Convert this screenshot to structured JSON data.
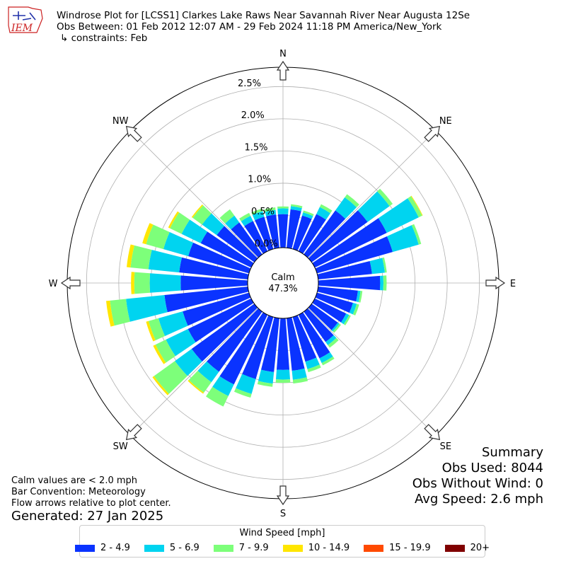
{
  "header": {
    "title": "Windrose Plot for [LCSS1] Clarkes Lake Raws Near Savannah River Near Augusta 12Se",
    "period": "Obs Between: 01 Feb 2012 12:07 AM - 29 Feb 2024 11:18 PM America/New_York",
    "constraints": "↳ constraints: Feb",
    "logo_text": "IEM"
  },
  "summary": {
    "title": "Summary",
    "obs_used": "Obs Used: 8044",
    "obs_without_wind": "Obs Without Wind: 0",
    "avg_speed": "Avg Speed: 2.6 mph"
  },
  "notes": {
    "calm_def": "Calm values are < 2.0 mph",
    "convention": "Bar Convention: Meteorology",
    "arrows": "Flow arrows relative to plot center.",
    "generated": "Generated: 27 Jan 2025"
  },
  "chart_data": {
    "type": "windrose",
    "calm_label": "Calm",
    "calm_value": "47.3%",
    "r_ticks": [
      "0.0%",
      "0.5%",
      "1.0%",
      "1.5%",
      "2.0%",
      "2.5%"
    ],
    "r_max": 2.8,
    "directions": [
      "N",
      "NE",
      "E",
      "SE",
      "S",
      "SW",
      "W",
      "NW"
    ],
    "legend_title": "Wind Speed [mph]",
    "bins": [
      {
        "label": "2 - 4.9",
        "color": "#0a33ff"
      },
      {
        "label": "5 - 6.9",
        "color": "#00d4f0"
      },
      {
        "label": "7 - 9.9",
        "color": "#7dff7a"
      },
      {
        "label": "10 - 14.9",
        "color": "#ffe600"
      },
      {
        "label": "15 - 19.9",
        "color": "#ff4a00"
      },
      {
        "label": "20+",
        "color": "#800000"
      }
    ],
    "sectors": [
      {
        "dir": 0,
        "values": [
          0.52,
          0.09,
          0.03,
          0,
          0,
          0
        ]
      },
      {
        "dir": 10,
        "values": [
          0.6,
          0.05,
          0.03,
          0,
          0,
          0
        ]
      },
      {
        "dir": 20,
        "values": [
          0.54,
          0.05,
          0.03,
          0,
          0,
          0
        ]
      },
      {
        "dir": 30,
        "values": [
          0.64,
          0.12,
          0.05,
          0,
          0,
          0
        ]
      },
      {
        "dir": 40,
        "values": [
          0.84,
          0.25,
          0.06,
          0,
          0,
          0
        ]
      },
      {
        "dir": 50,
        "values": [
          1.07,
          0.42,
          0.06,
          0,
          0,
          0
        ]
      },
      {
        "dir": 60,
        "values": [
          1.24,
          0.55,
          0.06,
          0.01,
          0,
          0
        ]
      },
      {
        "dir": 70,
        "values": [
          1.22,
          0.42,
          0.04,
          0,
          0,
          0
        ]
      },
      {
        "dir": 80,
        "values": [
          0.84,
          0.2,
          0.03,
          0,
          0,
          0
        ]
      },
      {
        "dir": 90,
        "values": [
          0.96,
          0.05,
          0.05,
          0,
          0,
          0
        ]
      },
      {
        "dir": 100,
        "values": [
          0.62,
          0.04,
          0.03,
          0,
          0,
          0
        ]
      },
      {
        "dir": 110,
        "values": [
          0.58,
          0.06,
          0.04,
          0,
          0,
          0
        ]
      },
      {
        "dir": 120,
        "values": [
          0.54,
          0.05,
          0.03,
          0,
          0,
          0
        ]
      },
      {
        "dir": 130,
        "values": [
          0.5,
          0.03,
          0.03,
          0,
          0,
          0
        ]
      },
      {
        "dir": 140,
        "values": [
          0.58,
          0.06,
          0.05,
          0,
          0,
          0
        ]
      },
      {
        "dir": 150,
        "values": [
          0.75,
          0.08,
          0.04,
          0,
          0,
          0
        ]
      },
      {
        "dir": 160,
        "values": [
          0.72,
          0.12,
          0.05,
          0,
          0,
          0
        ]
      },
      {
        "dir": 170,
        "values": [
          0.82,
          0.14,
          0.06,
          0,
          0,
          0
        ]
      },
      {
        "dir": 180,
        "values": [
          0.8,
          0.15,
          0.05,
          0,
          0,
          0
        ]
      },
      {
        "dir": 190,
        "values": [
          0.84,
          0.18,
          0.05,
          0,
          0,
          0
        ]
      },
      {
        "dir": 200,
        "values": [
          1.0,
          0.24,
          0.06,
          0,
          0,
          0
        ]
      },
      {
        "dir": 210,
        "values": [
          1.2,
          0.2,
          0.18,
          0,
          0,
          0
        ]
      },
      {
        "dir": 220,
        "values": [
          1.15,
          0.2,
          0.2,
          0.02,
          0,
          0
        ]
      },
      {
        "dir": 230,
        "values": [
          1.2,
          0.32,
          0.4,
          0.03,
          0,
          0
        ]
      },
      {
        "dir": 240,
        "values": [
          1.09,
          0.38,
          0.18,
          0.04,
          0,
          0
        ]
      },
      {
        "dir": 250,
        "values": [
          1.07,
          0.39,
          0.16,
          0.04,
          0,
          0
        ]
      },
      {
        "dir": 260,
        "values": [
          1.3,
          0.6,
          0.25,
          0.06,
          0,
          0
        ]
      },
      {
        "dir": 270,
        "values": [
          1.04,
          0.48,
          0.24,
          0.05,
          0,
          0
        ]
      },
      {
        "dir": 280,
        "values": [
          1.07,
          0.48,
          0.28,
          0.06,
          0,
          0
        ]
      },
      {
        "dir": 290,
        "values": [
          0.98,
          0.4,
          0.28,
          0.06,
          0,
          0
        ]
      },
      {
        "dir": 300,
        "values": [
          0.87,
          0.33,
          0.2,
          0.03,
          0,
          0
        ]
      },
      {
        "dir": 310,
        "values": [
          0.72,
          0.28,
          0.18,
          0.02,
          0,
          0
        ]
      },
      {
        "dir": 320,
        "values": [
          0.61,
          0.13,
          0.12,
          0,
          0,
          0
        ]
      },
      {
        "dir": 330,
        "values": [
          0.52,
          0.09,
          0.05,
          0,
          0,
          0
        ]
      },
      {
        "dir": 340,
        "values": [
          0.52,
          0.09,
          0.04,
          0,
          0,
          0
        ]
      },
      {
        "dir": 350,
        "values": [
          0.52,
          0.07,
          0.04,
          0,
          0,
          0
        ]
      }
    ]
  }
}
